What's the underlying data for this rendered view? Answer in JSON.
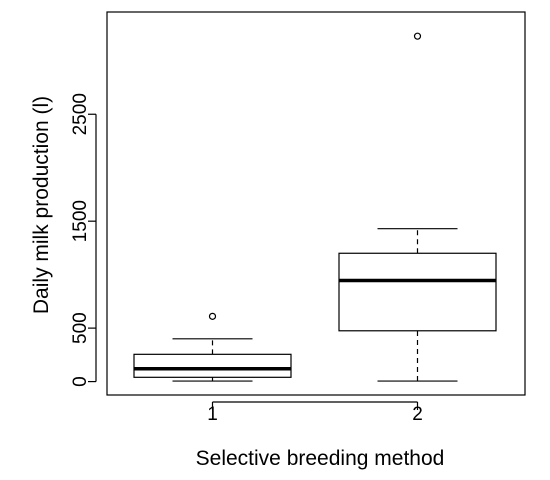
{
  "chart_data": {
    "type": "boxplot",
    "title": "",
    "xlabel": "Selective breeding method",
    "ylabel": "Daily milk production (l)",
    "categories": [
      "1",
      "2"
    ],
    "y_ticks": [
      0,
      500,
      1500,
      2500
    ],
    "y_tick_labels": [
      "0",
      "500",
      "1500",
      "2500"
    ],
    "ylim": [
      -60,
      3400
    ],
    "grid": false,
    "legend": "none",
    "boxes": [
      {
        "category": "1",
        "min": 5,
        "q1": 40,
        "median": 120,
        "q3": 255,
        "max": 400,
        "outliers": [
          610
        ]
      },
      {
        "category": "2",
        "min": 5,
        "q1": 475,
        "median": 945,
        "q3": 1200,
        "max": 1430,
        "outliers": [
          3230
        ]
      }
    ]
  }
}
